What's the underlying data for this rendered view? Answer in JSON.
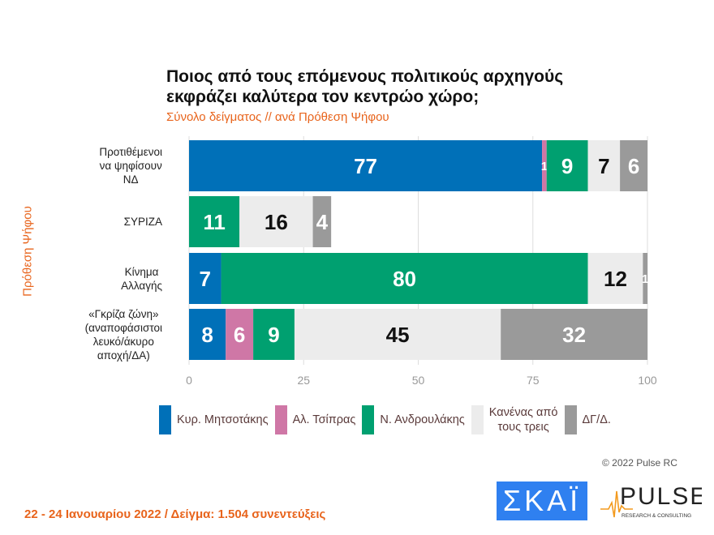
{
  "chart_data": {
    "type": "bar",
    "orientation": "horizontal",
    "stacked": true,
    "title": "Ποιος από τους επόμενους πολιτικούς αρχηγούς εκφράζει καλύτερα τον κεντρώο χώρο;",
    "subtitle": "Σύνολο δείγματος // ανά Πρόθεση Ψήφου",
    "ylabel": "Πρόθεση Ψήφου",
    "xlim": [
      0,
      100
    ],
    "xticks": [
      "0",
      "25",
      "50",
      "75",
      "100"
    ],
    "categories": [
      "Προτιθέμενοι να ψηφίσουν ΝΔ",
      "ΣΥΡΙΖΑ",
      "Κίνημα Αλλαγής",
      "«Γκρίζα ζώνη» (αναποφάσιστοι λευκό/άκυρο αποχή/ΔΑ)"
    ],
    "category_lines": [
      [
        "Προτιθέμενοι",
        "να ψηφίσουν",
        "ΝΔ"
      ],
      [
        "ΣΥΡΙΖΑ"
      ],
      [
        "Κίνημα",
        "Αλλαγής"
      ],
      [
        "«Γκρίζα ζώνη»",
        "(αναποφάσιστοι",
        "λευκό/άκυρο",
        "αποχή/ΔΑ)"
      ]
    ],
    "series": [
      {
        "name": "Κυρ. Μητσοτάκης",
        "color": "#0070b8",
        "values": [
          77,
          0,
          7,
          8
        ]
      },
      {
        "name": "Αλ. Τσίπρας",
        "color": "#cf77a6",
        "values": [
          1,
          0,
          0,
          6
        ]
      },
      {
        "name": "Ν. Ανδρουλάκης",
        "color": "#00a070",
        "values": [
          9,
          11,
          80,
          9
        ]
      },
      {
        "name": "Κανένας από τους τρεις",
        "color": "#ececec",
        "values": [
          7,
          16,
          12,
          45
        ]
      },
      {
        "name": "ΔΓ/Δ.",
        "color": "#9a9a9a",
        "values": [
          6,
          4,
          1,
          32
        ]
      }
    ],
    "legend_position": "bottom"
  },
  "legend_lines": [
    [
      "Κυρ. Μητσοτάκης"
    ],
    [
      "Αλ. Τσίπρας"
    ],
    [
      "Ν. Ανδρουλάκης"
    ],
    [
      "Κανένας από",
      "τους τρεις"
    ],
    [
      "ΔΓ/Δ."
    ]
  ],
  "copyright": "© 2022 Pulse RC",
  "footer": "22 - 24 Ιανουαρίου  2022  /  Δείγμα:  1.504 συνεντεύξεις",
  "logos": {
    "skai": "ΣΚΑΪ",
    "pulse": "PULSE",
    "pulse_sub": "RESEARCH & CONSULTING"
  }
}
